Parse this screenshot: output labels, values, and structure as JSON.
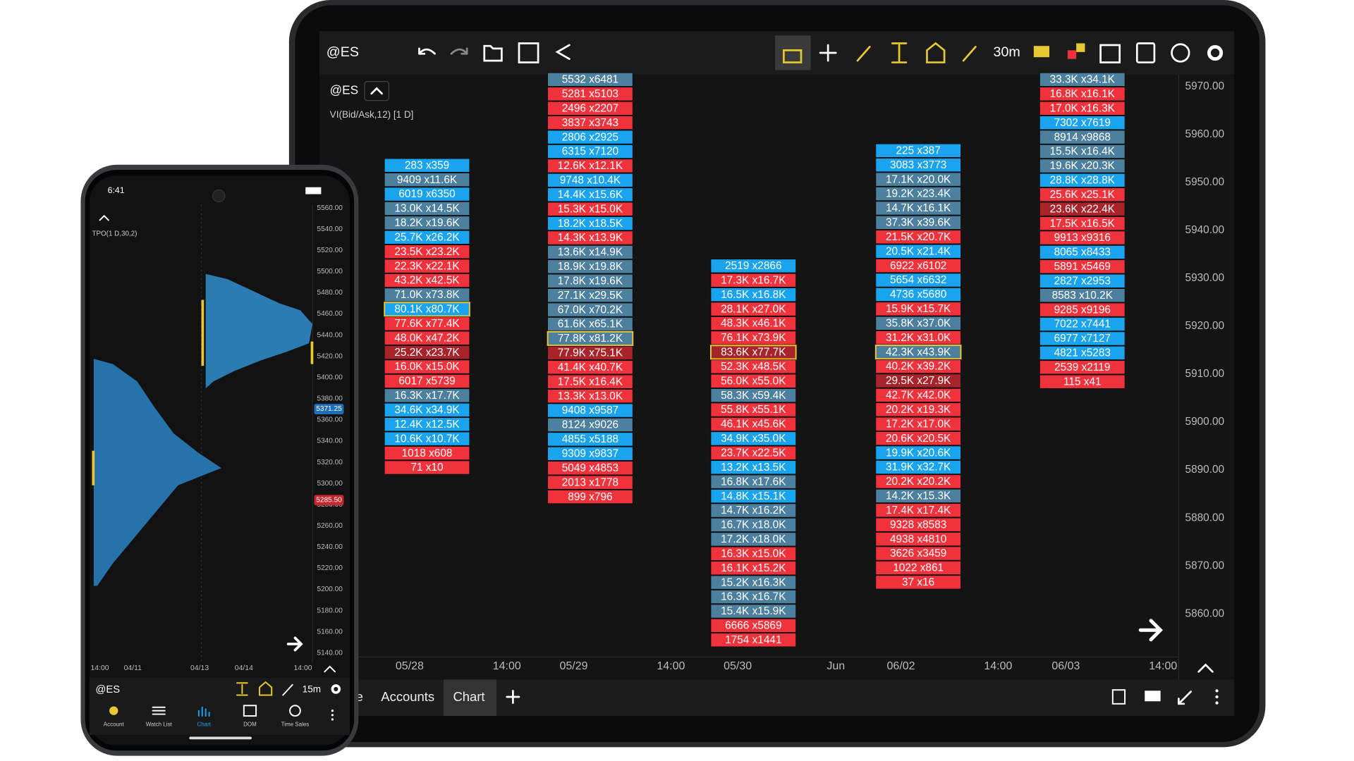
{
  "tablet": {
    "toolbar": {
      "symbol": "@ES",
      "interval": "30m"
    },
    "chart": {
      "symbol": "@ES",
      "study": "VI(Bid/Ask,12) [1 D]"
    },
    "price_axis": [
      "5970.00",
      "5960.00",
      "5950.00",
      "5940.00",
      "5930.00",
      "5920.00",
      "5910.00",
      "5900.00",
      "5890.00",
      "5880.00",
      "5870.00",
      "5860.00"
    ],
    "time_axis": [
      "05/28",
      "14:00",
      "05/29",
      "14:00",
      "05/30",
      "Jun",
      "06/02",
      "14:00",
      "06/03",
      "14:00"
    ],
    "tabs": [
      "e",
      "Accounts",
      "Chart"
    ],
    "footprint": {
      "highlight_color": "#e8c830",
      "columns": [
        {
          "highlight": 10,
          "cells": [
            [
              "283 x359",
              "#1aa3ee"
            ],
            [
              "9409 x11.6K",
              "#4d7f9e"
            ],
            [
              "6019 x6350",
              "#1aa3ee"
            ],
            [
              "13.0K x14.5K",
              "#4d7f9e"
            ],
            [
              "18.2K x19.6K",
              "#4d7f9e"
            ],
            [
              "25.7K x26.2K",
              "#1aa3ee"
            ],
            [
              "23.5K x23.2K",
              "#f0323c"
            ],
            [
              "22.3K x22.1K",
              "#f0323c"
            ],
            [
              "43.2K x42.5K",
              "#f0323c"
            ],
            [
              "71.0K x73.8K",
              "#4d7f9e"
            ],
            [
              "80.1K x80.7K",
              "#1aa3ee"
            ],
            [
              "77.6K x77.4K",
              "#f0323c"
            ],
            [
              "48.0K x47.2K",
              "#f0323c"
            ],
            [
              "25.2K x23.7K",
              "#a8232a"
            ],
            [
              "16.0K x15.0K",
              "#f0323c"
            ],
            [
              "6017 x5739",
              "#f0323c"
            ],
            [
              "16.3K x17.7K",
              "#4d7f9e"
            ],
            [
              "34.6K x34.9K",
              "#1aa3ee"
            ],
            [
              "12.4K x12.5K",
              "#1aa3ee"
            ],
            [
              "10.6K x10.7K",
              "#1aa3ee"
            ],
            [
              "1018 x608",
              "#f0323c"
            ],
            [
              "71 x10",
              "#f0323c"
            ]
          ]
        },
        {
          "highlight": 18,
          "cells": [
            [
              "5532 x6481",
              "#4d7f9e"
            ],
            [
              "5281 x5103",
              "#f0323c"
            ],
            [
              "2496 x2207",
              "#f0323c"
            ],
            [
              "3837 x3743",
              "#f0323c"
            ],
            [
              "2806 x2925",
              "#1aa3ee"
            ],
            [
              "6315 x7120",
              "#1aa3ee"
            ],
            [
              "12.6K x12.1K",
              "#f0323c"
            ],
            [
              "9748 x10.4K",
              "#1aa3ee"
            ],
            [
              "14.4K x15.6K",
              "#1aa3ee"
            ],
            [
              "15.3K x15.0K",
              "#f0323c"
            ],
            [
              "18.2K x18.5K",
              "#1aa3ee"
            ],
            [
              "14.3K x13.9K",
              "#f0323c"
            ],
            [
              "13.6K x14.9K",
              "#4d7f9e"
            ],
            [
              "18.9K x19.8K",
              "#4d7f9e"
            ],
            [
              "17.8K x19.6K",
              "#4d7f9e"
            ],
            [
              "27.1K x29.5K",
              "#4d7f9e"
            ],
            [
              "67.0K x70.2K",
              "#4d7f9e"
            ],
            [
              "61.6K x65.1K",
              "#4d7f9e"
            ],
            [
              "77.8K x81.2K",
              "#4d7f9e"
            ],
            [
              "77.9K x75.1K",
              "#a8232a"
            ],
            [
              "41.4K x40.7K",
              "#f0323c"
            ],
            [
              "17.5K x16.4K",
              "#f0323c"
            ],
            [
              "13.3K x13.0K",
              "#f0323c"
            ],
            [
              "9408 x9587",
              "#1aa3ee"
            ],
            [
              "8124 x9026",
              "#4d7f9e"
            ],
            [
              "4855 x5188",
              "#1aa3ee"
            ],
            [
              "9309 x9837",
              "#1aa3ee"
            ],
            [
              "5049 x4853",
              "#f0323c"
            ],
            [
              "2013 x1778",
              "#f0323c"
            ],
            [
              "899 x796",
              "#f0323c"
            ]
          ]
        },
        {
          "highlight": 6,
          "cells": [
            [
              "2519 x2866",
              "#1aa3ee"
            ],
            [
              "17.3K x16.7K",
              "#f0323c"
            ],
            [
              "16.5K x16.8K",
              "#1aa3ee"
            ],
            [
              "28.1K x27.0K",
              "#f0323c"
            ],
            [
              "48.3K x46.1K",
              "#f0323c"
            ],
            [
              "76.1K x73.9K",
              "#f0323c"
            ],
            [
              "83.6K x77.7K",
              "#a8232a"
            ],
            [
              "52.3K x48.5K",
              "#f0323c"
            ],
            [
              "56.0K x55.0K",
              "#f0323c"
            ],
            [
              "58.3K x59.4K",
              "#4d7f9e"
            ],
            [
              "55.8K x55.1K",
              "#f0323c"
            ],
            [
              "46.1K x45.6K",
              "#f0323c"
            ],
            [
              "34.9K x35.0K",
              "#1aa3ee"
            ],
            [
              "23.7K x22.5K",
              "#f0323c"
            ],
            [
              "13.2K x13.5K",
              "#1aa3ee"
            ],
            [
              "16.8K x17.6K",
              "#4d7f9e"
            ],
            [
              "14.8K x15.1K",
              "#1aa3ee"
            ],
            [
              "14.7K x16.2K",
              "#4d7f9e"
            ],
            [
              "16.7K x18.0K",
              "#4d7f9e"
            ],
            [
              "17.2K x18.0K",
              "#4d7f9e"
            ],
            [
              "16.3K x15.0K",
              "#f0323c"
            ],
            [
              "16.1K x15.2K",
              "#f0323c"
            ],
            [
              "15.2K x16.3K",
              "#4d7f9e"
            ],
            [
              "16.3K x16.7K",
              "#4d7f9e"
            ],
            [
              "15.4K x15.9K",
              "#4d7f9e"
            ],
            [
              "6666 x5869",
              "#f0323c"
            ],
            [
              "1754 x1441",
              "#f0323c"
            ]
          ]
        },
        {
          "highlight": 14,
          "cells": [
            [
              "225 x387",
              "#1aa3ee"
            ],
            [
              "3083 x3773",
              "#1aa3ee"
            ],
            [
              "17.1K x20.0K",
              "#4d7f9e"
            ],
            [
              "19.2K x23.4K",
              "#4d7f9e"
            ],
            [
              "14.7K x16.1K",
              "#4d7f9e"
            ],
            [
              "37.3K x39.6K",
              "#4d7f9e"
            ],
            [
              "21.5K x20.7K",
              "#f0323c"
            ],
            [
              "20.5K x21.4K",
              "#1aa3ee"
            ],
            [
              "6922 x6102",
              "#f0323c"
            ],
            [
              "5654 x6632",
              "#1aa3ee"
            ],
            [
              "4736 x5680",
              "#1aa3ee"
            ],
            [
              "15.9K x15.7K",
              "#f0323c"
            ],
            [
              "35.8K x37.0K",
              "#4d7f9e"
            ],
            [
              "31.2K x31.0K",
              "#f0323c"
            ],
            [
              "42.3K x43.9K",
              "#4d7f9e"
            ],
            [
              "40.2K x39.2K",
              "#f0323c"
            ],
            [
              "29.5K x27.9K",
              "#a8232a"
            ],
            [
              "42.7K x42.0K",
              "#f0323c"
            ],
            [
              "20.2K x19.3K",
              "#f0323c"
            ],
            [
              "17.2K x17.0K",
              "#f0323c"
            ],
            [
              "20.6K x20.5K",
              "#f0323c"
            ],
            [
              "19.9K x20.6K",
              "#1aa3ee"
            ],
            [
              "31.9K x32.7K",
              "#1aa3ee"
            ],
            [
              "20.2K x20.2K",
              "#f0323c"
            ],
            [
              "14.2K x15.3K",
              "#4d7f9e"
            ],
            [
              "17.4K x17.4K",
              "#f0323c"
            ],
            [
              "9328 x8583",
              "#f0323c"
            ],
            [
              "4938 x4810",
              "#f0323c"
            ],
            [
              "3626 x3459",
              "#f0323c"
            ],
            [
              "1022 x861",
              "#f0323c"
            ],
            [
              "37 x16",
              "#f0323c"
            ]
          ]
        },
        {
          "cells": [
            [
              "33.3K x34.1K",
              "#4d7f9e"
            ],
            [
              "16.8K x16.1K",
              "#f0323c"
            ],
            [
              "17.0K x16.3K",
              "#f0323c"
            ],
            [
              "7302 x7619",
              "#1aa3ee"
            ],
            [
              "8914 x9868",
              "#4d7f9e"
            ],
            [
              "15.5K x16.4K",
              "#4d7f9e"
            ],
            [
              "19.6K x20.3K",
              "#4d7f9e"
            ],
            [
              "28.8K x28.8K",
              "#1aa3ee"
            ],
            [
              "25.6K x25.1K",
              "#f0323c"
            ],
            [
              "23.6K x22.4K",
              "#a8232a"
            ],
            [
              "17.5K x16.5K",
              "#f0323c"
            ],
            [
              "9913 x9316",
              "#f0323c"
            ],
            [
              "8065 x8433",
              "#1aa3ee"
            ],
            [
              "5891 x5469",
              "#f0323c"
            ],
            [
              "2827 x2953",
              "#1aa3ee"
            ],
            [
              "8583 x10.2K",
              "#4d7f9e"
            ],
            [
              "9285 x9196",
              "#f0323c"
            ],
            [
              "7022 x7441",
              "#1aa3ee"
            ],
            [
              "6977 x7127",
              "#1aa3ee"
            ],
            [
              "4821 x5283",
              "#1aa3ee"
            ],
            [
              "2539 x2119",
              "#f0323c"
            ],
            [
              "115 x41",
              "#f0323c"
            ]
          ]
        }
      ]
    }
  },
  "phone": {
    "status_time": "6:41",
    "study": "TPO(1 D,30,2)",
    "price_axis": [
      "5560.00",
      "5540.00",
      "5520.00",
      "5500.00",
      "5480.00",
      "5460.00",
      "5440.00",
      "5420.00",
      "5400.00",
      "5380.00",
      "5360.00",
      "5340.00",
      "5320.00",
      "5300.00",
      "5280.00",
      "5260.00",
      "5240.00",
      "5220.00",
      "5200.00",
      "5180.00",
      "5160.00",
      "5140.00"
    ],
    "price_badges": [
      [
        "5371.25",
        "#1f6fb8"
      ],
      [
        "5285.50",
        "#c8262e"
      ]
    ],
    "time_axis": [
      "14:00",
      "04/11",
      "04/13",
      "04/14",
      "14:00"
    ],
    "toolbar": {
      "symbol": "@ES",
      "interval": "15m"
    },
    "nav": [
      "Account",
      "Watch List",
      "Chart",
      "DOM",
      "Time Sales"
    ]
  }
}
